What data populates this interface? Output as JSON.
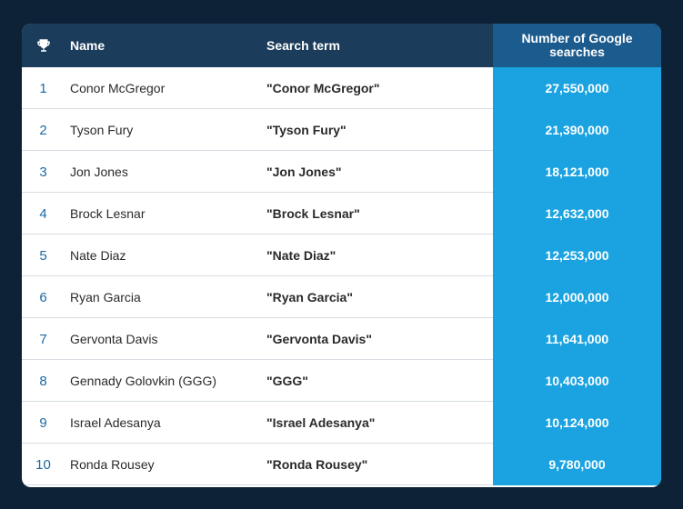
{
  "table": {
    "headers": {
      "icon": "trophy-icon",
      "name": "Name",
      "term": "Search term",
      "count": "Number of Google searches"
    },
    "rows": [
      {
        "rank": "1",
        "name": "Conor McGregor",
        "term": "\"Conor McGregor\"",
        "count": "27,550,000"
      },
      {
        "rank": "2",
        "name": "Tyson Fury",
        "term": "\"Tyson Fury\"",
        "count": "21,390,000"
      },
      {
        "rank": "3",
        "name": "Jon Jones",
        "term": "\"Jon Jones\"",
        "count": "18,121,000"
      },
      {
        "rank": "4",
        "name": "Brock Lesnar",
        "term": "\"Brock Lesnar\"",
        "count": "12,632,000"
      },
      {
        "rank": "5",
        "name": "Nate Diaz",
        "term": "\"Nate Diaz\"",
        "count": "12,253,000"
      },
      {
        "rank": "6",
        "name": "Ryan Garcia",
        "term": "\"Ryan Garcia\"",
        "count": "12,000,000"
      },
      {
        "rank": "7",
        "name": "Gervonta Davis",
        "term": "\"Gervonta Davis\"",
        "count": "11,641,000"
      },
      {
        "rank": "8",
        "name": "Gennady Golovkin (GGG)",
        "term": "\"GGG\"",
        "count": "10,403,000"
      },
      {
        "rank": "9",
        "name": "Israel Adesanya",
        "term": "\"Israel Adesanya\"",
        "count": "10,124,000"
      },
      {
        "rank": "10",
        "name": "Ronda Rousey",
        "term": "\"Ronda Rousey\"",
        "count": "9,780,000"
      }
    ]
  },
  "chart_data": {
    "type": "table",
    "columns": [
      "",
      "Name",
      "Search term",
      "Number of Google searches"
    ],
    "rows": [
      [
        1,
        "Conor McGregor",
        "\"Conor McGregor\"",
        27550000
      ],
      [
        2,
        "Tyson Fury",
        "\"Tyson Fury\"",
        21390000
      ],
      [
        3,
        "Jon Jones",
        "\"Jon Jones\"",
        18121000
      ],
      [
        4,
        "Brock Lesnar",
        "\"Brock Lesnar\"",
        12632000
      ],
      [
        5,
        "Nate Diaz",
        "\"Nate Diaz\"",
        12253000
      ],
      [
        6,
        "Ryan Garcia",
        "\"Ryan Garcia\"",
        12000000
      ],
      [
        7,
        "Gervonta Davis",
        "\"Gervonta Davis\"",
        11641000
      ],
      [
        8,
        "Gennady Golovkin (GGG)",
        "\"GGG\"",
        10403000
      ],
      [
        9,
        "Israel Adesanya",
        "\"Israel Adesanya\"",
        10124000
      ],
      [
        10,
        "Ronda Rousey",
        "\"Ronda Rousey\"",
        9780000
      ]
    ]
  },
  "colors": {
    "background": "#0d2236",
    "header": "#1b3c5b",
    "header_count": "#1c5b8d",
    "count_column": "#1aa3e0",
    "rank_text": "#1b6aa3"
  }
}
